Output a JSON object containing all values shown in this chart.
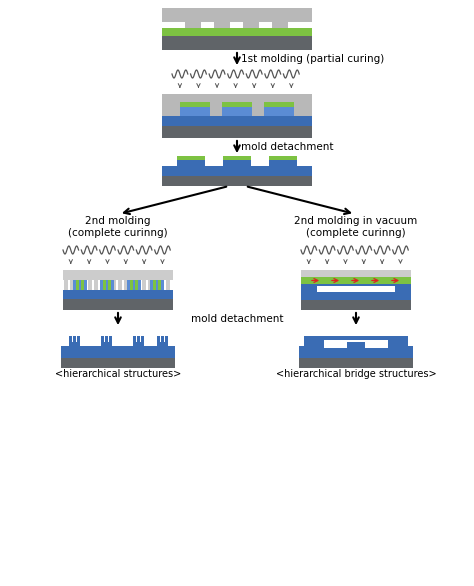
{
  "bg_color": "#ffffff",
  "gray_dark": "#606468",
  "gray_light": "#b8b8b8",
  "green": "#7dc242",
  "blue": "#3a6cb4",
  "blue_light": "#5b8cd4",
  "white": "#ffffff",
  "red": "#dd2222",
  "label1": "1st molding (partial curing)",
  "label2": "mold detachment",
  "label3_left": "2nd molding\n(complete curinng)",
  "label3_right": "2nd molding in vacuum\n(complete curinng)",
  "label4": "mold detachment",
  "label5_left": "<hierarchical structures>",
  "label5_right": "<hierarchical bridge structures>"
}
